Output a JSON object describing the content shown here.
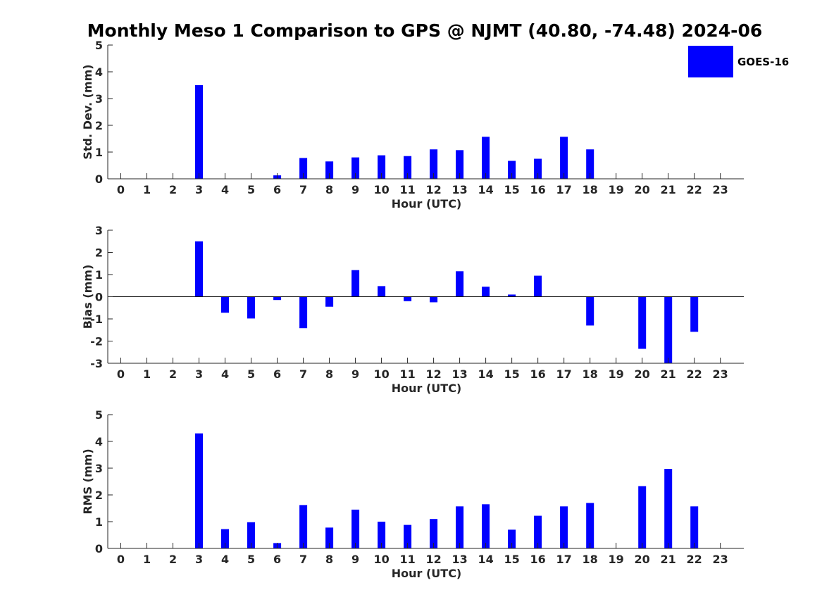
{
  "figure": {
    "title": "Monthly Meso 1 Comparison to GPS @ NJMT (40.80, -74.48) 2024-06"
  },
  "colors": {
    "bar": "#0000ff",
    "axis": "#262626",
    "zero_line": "#000000"
  },
  "legend": {
    "label": "GOES-16",
    "placement": "top-right"
  },
  "chart_data": [
    {
      "type": "bar",
      "id": "std",
      "title": "",
      "xlabel": "Hour (UTC)",
      "ylabel": "Std. Dev. (mm)",
      "x": [
        0,
        1,
        2,
        3,
        4,
        5,
        6,
        7,
        8,
        9,
        10,
        11,
        12,
        13,
        14,
        15,
        16,
        17,
        18,
        19,
        20,
        21,
        22,
        23
      ],
      "xticks": [
        "0",
        "1",
        "2",
        "3",
        "4",
        "5",
        "6",
        "7",
        "8",
        "9",
        "10",
        "11",
        "12",
        "13",
        "14",
        "15",
        "16",
        "17",
        "18",
        "19",
        "20",
        "21",
        "22",
        "23"
      ],
      "ylim": [
        0,
        5
      ],
      "yticks": [
        "0",
        "1",
        "2",
        "3",
        "4",
        "5"
      ],
      "grid": false,
      "series": [
        {
          "name": "GOES-16",
          "values": [
            0,
            0,
            0,
            3.5,
            0,
            0,
            0.13,
            0.78,
            0.65,
            0.8,
            0.88,
            0.85,
            1.1,
            1.07,
            1.57,
            0.67,
            0.75,
            1.57,
            1.1,
            0,
            0,
            0,
            0,
            0
          ]
        }
      ]
    },
    {
      "type": "bar",
      "id": "bias",
      "title": "",
      "xlabel": "Hour (UTC)",
      "ylabel": "Bias (mm)",
      "x": [
        0,
        1,
        2,
        3,
        4,
        5,
        6,
        7,
        8,
        9,
        10,
        11,
        12,
        13,
        14,
        15,
        16,
        17,
        18,
        19,
        20,
        21,
        22,
        23
      ],
      "xticks": [
        "0",
        "1",
        "2",
        "3",
        "4",
        "5",
        "6",
        "7",
        "8",
        "9",
        "10",
        "11",
        "12",
        "13",
        "14",
        "15",
        "16",
        "17",
        "18",
        "19",
        "20",
        "21",
        "22",
        "23"
      ],
      "ylim": [
        -3,
        3
      ],
      "yticks": [
        "-3",
        "-2",
        "-1",
        "0",
        "1",
        "2",
        "3"
      ],
      "grid": false,
      "series": [
        {
          "name": "GOES-16",
          "values": [
            0,
            0,
            0,
            2.5,
            -0.72,
            -0.98,
            -0.15,
            -1.42,
            -0.45,
            1.2,
            0.48,
            -0.2,
            -0.25,
            1.15,
            0.45,
            0.1,
            0.95,
            0,
            -1.3,
            0,
            -2.35,
            -3,
            -1.58,
            0
          ]
        }
      ]
    },
    {
      "type": "bar",
      "id": "rms",
      "title": "",
      "xlabel": "Hour (UTC)",
      "ylabel": "RMS (mm)",
      "x": [
        0,
        1,
        2,
        3,
        4,
        5,
        6,
        7,
        8,
        9,
        10,
        11,
        12,
        13,
        14,
        15,
        16,
        17,
        18,
        19,
        20,
        21,
        22,
        23
      ],
      "xticks": [
        "0",
        "1",
        "2",
        "3",
        "4",
        "5",
        "6",
        "7",
        "8",
        "9",
        "10",
        "11",
        "12",
        "13",
        "14",
        "15",
        "16",
        "17",
        "18",
        "19",
        "20",
        "21",
        "22",
        "23"
      ],
      "ylim": [
        0,
        5
      ],
      "yticks": [
        "0",
        "1",
        "2",
        "3",
        "4",
        "5"
      ],
      "grid": false,
      "series": [
        {
          "name": "GOES-16",
          "values": [
            0,
            0,
            0,
            4.3,
            0.72,
            0.98,
            0.2,
            1.62,
            0.78,
            1.45,
            1.0,
            0.88,
            1.1,
            1.57,
            1.65,
            0.7,
            1.22,
            1.57,
            1.7,
            0,
            2.33,
            2.97,
            1.57,
            0
          ]
        }
      ]
    }
  ]
}
